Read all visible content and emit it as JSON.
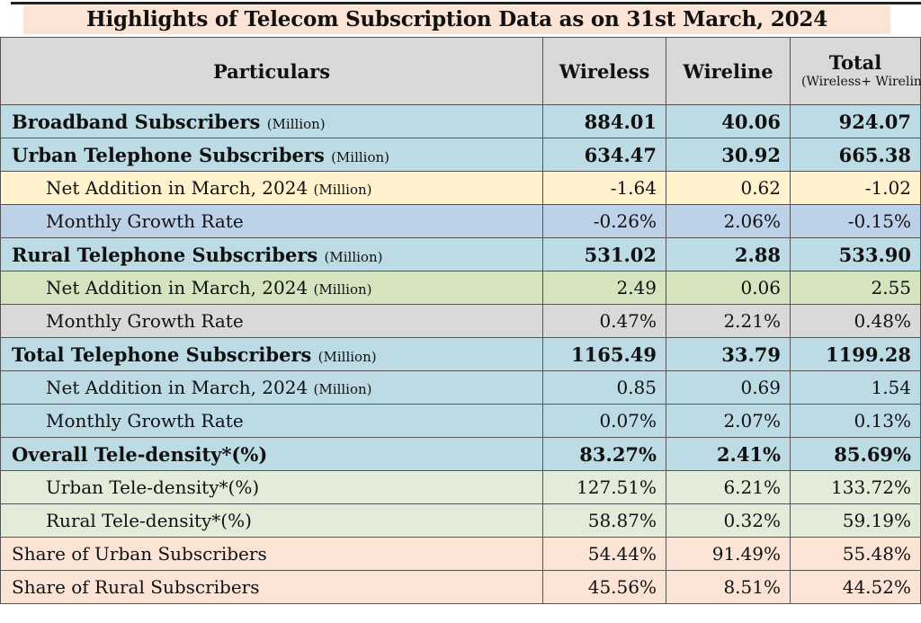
{
  "title": "Highlights of Telecom Subscription Data as on 31st March, 2024",
  "headers": {
    "particulars": "Particulars",
    "wireless": "Wireless",
    "wireline": "Wireline",
    "total": "Total",
    "total_sub": "(Wireless+ Wireline)"
  },
  "rows": [
    {
      "label": "Broadband Subscribers",
      "unit": "(Million)",
      "wireless": "884.01",
      "wireline": "40.06",
      "total": "924.07"
    },
    {
      "label": "Urban Telephone Subscribers",
      "unit": "(Million)",
      "wireless": "634.47",
      "wireline": "30.92",
      "total": "665.38"
    },
    {
      "label": "Net Addition in  March, 2024",
      "unit": "(Million)",
      "wireless": "-1.64",
      "wireline": "0.62",
      "total": "-1.02"
    },
    {
      "label": "Monthly Growth Rate",
      "unit": "",
      "wireless": "-0.26%",
      "wireline": "2.06%",
      "total": "-0.15%"
    },
    {
      "label": "Rural Telephone Subscribers",
      "unit": "(Million)",
      "wireless": "531.02",
      "wireline": "2.88",
      "total": "533.90"
    },
    {
      "label": "Net Addition in March, 2024",
      "unit": "(Million)",
      "wireless": "2.49",
      "wireline": "0.06",
      "total": "2.55"
    },
    {
      "label": "Monthly Growth Rate",
      "unit": "",
      "wireless": "0.47%",
      "wireline": "2.21%",
      "total": "0.48%"
    },
    {
      "label": "Total Telephone Subscribers",
      "unit": "(Million)",
      "wireless": "1165.49",
      "wireline": "33.79",
      "total": "1199.28"
    },
    {
      "label": "Net Addition in March, 2024",
      "unit": "(Million)",
      "wireless": "0.85",
      "wireline": "0.69",
      "total": "1.54"
    },
    {
      "label": "Monthly Growth Rate",
      "unit": "",
      "wireless": "0.07%",
      "wireline": "2.07%",
      "total": "0.13%"
    },
    {
      "label": "Overall Tele-density*(%)",
      "unit": "",
      "wireless": "83.27%",
      "wireline": "2.41%",
      "total": "85.69%"
    },
    {
      "label": "Urban Tele-density*(%)",
      "unit": "",
      "wireless": "127.51%",
      "wireline": "6.21%",
      "total": "133.72%"
    },
    {
      "label": "Rural Tele-density*(%)",
      "unit": "",
      "wireless": "58.87%",
      "wireline": "0.32%",
      "total": "59.19%"
    },
    {
      "label": "Share of Urban Subscribers",
      "unit": "",
      "wireless": "54.44%",
      "wireline": "91.49%",
      "total": "55.48%"
    },
    {
      "label": "Share of Rural Subscribers",
      "unit": "",
      "wireless": "45.56%",
      "wireline": "8.51%",
      "total": "44.52%"
    }
  ]
}
